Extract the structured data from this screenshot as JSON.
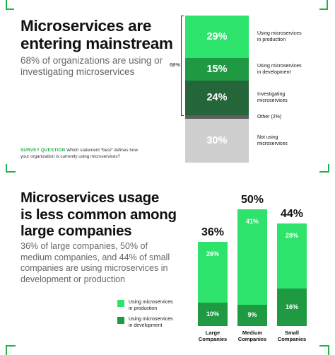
{
  "colors": {
    "production": "#2ee36b",
    "development": "#1f9a42",
    "investigating": "#25653a",
    "other": "#5f5f5f",
    "not_using": "#cfcfcf",
    "accent": "#22b24c"
  },
  "top": {
    "title_lines": [
      "Microservices are",
      "entering mainstream"
    ],
    "subtitle_lines": [
      "68% of organizations are using or",
      "investigating microservices"
    ],
    "survey_tag": "SURVEY QUESTION",
    "survey_line1": "Which statement *best* defines how",
    "survey_line2": "your organization is currently using microservices?",
    "bracket_label": "68%",
    "segments": [
      {
        "value_label": "29%",
        "label_lines": [
          "Using microservices",
          "in production"
        ]
      },
      {
        "value_label": "15%",
        "label_lines": [
          "Using microservices",
          "in development"
        ]
      },
      {
        "value_label": "24%",
        "label_lines": [
          "Investigating",
          "microservices"
        ]
      },
      {
        "value_label": "",
        "label_lines": [
          "Other (2%)"
        ]
      },
      {
        "value_label": "30%",
        "label_lines": [
          "Not using",
          "microservices"
        ]
      }
    ]
  },
  "bottom": {
    "title_lines": [
      "Microservices usage",
      "is less common among",
      "large companies"
    ],
    "subtitle_lines": [
      "36% of large companies, 50% of",
      "medium companies, and 44% of small",
      "companies are using microservices in",
      "development or production"
    ],
    "legend": [
      {
        "label_lines": [
          "Using microservices",
          "in production"
        ],
        "color_key": "production"
      },
      {
        "label_lines": [
          "Using microservices",
          "in development"
        ],
        "color_key": "development"
      }
    ],
    "bars": [
      {
        "total": "36%",
        "production": "26%",
        "development": "10%",
        "category_lines": [
          "Large",
          "Companies"
        ]
      },
      {
        "total": "50%",
        "production": "41%",
        "development": "9%",
        "category_lines": [
          "Medium",
          "Companies"
        ]
      },
      {
        "total": "44%",
        "production": "28%",
        "development": "16%",
        "category_lines": [
          "Small",
          "Companies"
        ]
      }
    ]
  },
  "chart_data": [
    {
      "type": "bar",
      "stacked": true,
      "categories": [
        "Using microservices in production",
        "Using microservices in development",
        "Investigating microservices",
        "Other",
        "Not using microservices"
      ],
      "values": [
        29,
        15,
        24,
        2,
        30
      ],
      "annotation": "68%"
    },
    {
      "type": "bar",
      "stacked": true,
      "categories": [
        "Large Companies",
        "Medium Companies",
        "Small Companies"
      ],
      "series": [
        {
          "name": "Using microservices in production",
          "values": [
            26,
            41,
            28
          ]
        },
        {
          "name": "Using microservices in development",
          "values": [
            10,
            9,
            16
          ]
        }
      ],
      "totals": [
        36,
        50,
        44
      ]
    }
  ]
}
